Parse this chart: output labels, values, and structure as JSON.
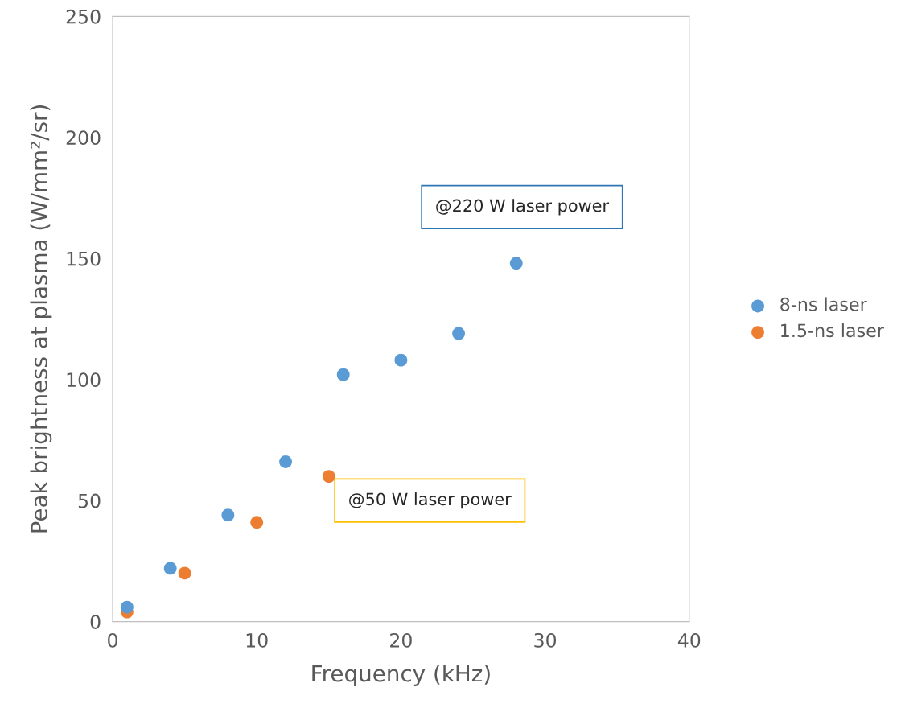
{
  "chart_data": {
    "type": "scatter",
    "xlabel": "Frequency (kHz)",
    "ylabel": "Peak brightness at plasma (W/mm²/sr)",
    "series": [
      {
        "name": "8-ns laser",
        "color": "#5b9bd5",
        "x": [
          1,
          4,
          8,
          12,
          16,
          20,
          24,
          28
        ],
        "values": [
          6,
          22,
          44,
          66,
          102,
          108,
          119,
          148
        ]
      },
      {
        "name": "1.5-ns laser",
        "color": "#ed7d31",
        "x": [
          1,
          5,
          10,
          15
        ],
        "values": [
          4,
          20,
          41,
          60
        ]
      }
    ],
    "annotations": [
      "@220 W laser power",
      "@50 W laser power"
    ],
    "xlim": [
      0,
      40
    ],
    "xticks": [
      0,
      10,
      20,
      30,
      40
    ],
    "ylim": [
      0,
      250
    ],
    "yticks": [
      0,
      50,
      100,
      150,
      200,
      250
    ],
    "marker": "circle",
    "legend": "right",
    "grid": false
  }
}
